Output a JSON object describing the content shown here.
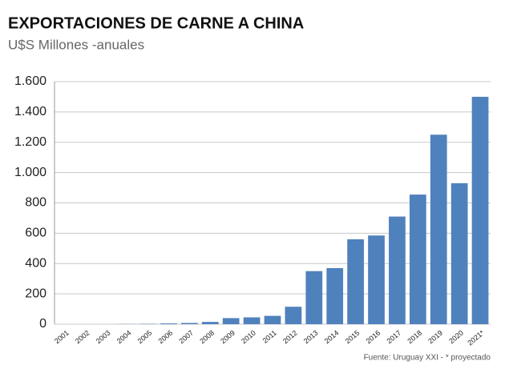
{
  "chart_data": {
    "type": "bar",
    "title": "EXPORTACIONES DE CARNE A CHINA",
    "subtitle": "U$S Millones -anuales",
    "source": "Fuente: Uruguay XXI - * proyectado",
    "categories": [
      "2001",
      "2002",
      "2003",
      "2004",
      "2005",
      "2006",
      "2007",
      "2008",
      "2009",
      "2010",
      "2011",
      "2012",
      "2013",
      "2014",
      "2015",
      "2016",
      "2017",
      "2018",
      "2019",
      "2020",
      "2021*"
    ],
    "values": [
      0,
      0,
      0,
      1,
      2,
      5,
      8,
      15,
      40,
      45,
      55,
      115,
      350,
      370,
      560,
      585,
      710,
      855,
      1250,
      930,
      1500
    ],
    "color": "#4f81bd",
    "ylim": [
      0,
      1600
    ],
    "yticks": [
      0,
      200,
      400,
      600,
      800,
      {
        "value": 1000,
        "label": "1.000"
      },
      {
        "value": 1200,
        "label": "1.200"
      },
      {
        "value": 1400,
        "label": "1.400"
      },
      {
        "value": 1600,
        "label": "1.600"
      }
    ],
    "grid": true
  }
}
